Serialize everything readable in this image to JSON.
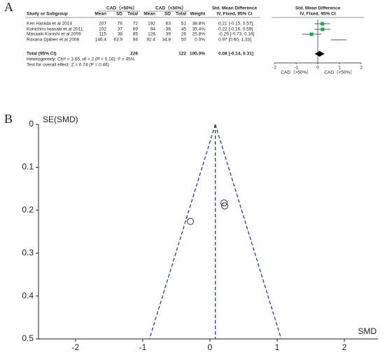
{
  "panel_labels": [
    "A",
    "B"
  ],
  "chart_data": [
    {
      "type": "forest",
      "group_headers": [
        "CAD（>50%）",
        "CAD（<50%）"
      ],
      "columns": [
        "Study or Subgroup",
        "Mean",
        "SD",
        "Total",
        "Mean",
        "SD",
        "Total",
        "Weight"
      ],
      "ci_header": [
        "Std. Mean Difference",
        "IV, Fixed, 95% CI"
      ],
      "plot_header": [
        "Std. Mean Difference",
        "IV, Fixed, 95% CI"
      ],
      "rows": [
        {
          "study": "Ken Harada et al 2014",
          "exp": [
            207,
            76,
            72
          ],
          "ctrl": [
            192,
            63,
            51
          ],
          "weight": "38.8%"
        },
        {
          "study": "Kohichiro Iwasaki et al 2011",
          "exp": [
            102,
            37,
            69
          ],
          "ctrl": [
            94,
            36,
            45
          ],
          "weight": "35.4%"
        },
        {
          "study": "Masaaki Konishi et al 2009",
          "exp": [
            115,
            38,
            85
          ],
          "ctrl": [
            126,
            39,
            26
          ],
          "weight": "25.8%"
        },
        {
          "study": "Roxana Djaberi et al 2008",
          "exp": [
            146.4,
            63.9,
            94
          ],
          "ctrl": [
            92.4,
            34.8,
            50
          ],
          "weight": "0.0%"
        }
      ],
      "values": [
        0.21,
        0.22,
        -0.29,
        0.97
      ],
      "lower": [
        -0.15,
        -0.16,
        -0.73,
        0.6
      ],
      "upper": [
        0.57,
        0.59,
        0.16,
        1.33
      ],
      "value_labels": [
        "0.21 [-0.15, 0.57]",
        "0.22 [-0.16, 0.59]",
        "-0.29 [-0.73, 0.16]",
        "0.97 [0.60, 1.33]"
      ],
      "total": {
        "label": "Total (95% CI)",
        "exp_total": 226,
        "ctrl_total": 122,
        "weight": "100.0%",
        "value": 0.08,
        "lower": -0.14,
        "upper": 0.31,
        "value_label": "0.08 [-0.14, 0.31]"
      },
      "heterogeneity": "Heterogeneity: Chi² = 3.65, df = 2 (P = 0.16); I² = 45%",
      "overall_effect": "Test for overall effect: Z = 0.74 (P = 0.46)",
      "xlim": [
        -2,
        2
      ],
      "xticks": [
        -2,
        -1,
        0,
        1,
        2
      ],
      "favours": [
        "CAD（>50%）",
        "CAD（<50%）"
      ],
      "color": "#00b050"
    },
    {
      "type": "scatter",
      "ylabel": "SE(SMD)",
      "xlabel": "SMD",
      "x": [
        0.21,
        0.22,
        -0.29
      ],
      "y": [
        0.183,
        0.19,
        0.226
      ],
      "xlim": [
        -2.55,
        2.5
      ],
      "xticks": [
        -2,
        -1,
        0,
        1,
        2
      ],
      "ylim": [
        0,
        0.5
      ],
      "yticks": [
        0,
        0.1,
        0.2,
        0.3,
        0.4,
        0.5
      ],
      "y_inverted": true,
      "pooled": 0.08,
      "funnel_limits": [
        -0.9,
        1.06
      ],
      "line_color": "#3333aa"
    }
  ]
}
